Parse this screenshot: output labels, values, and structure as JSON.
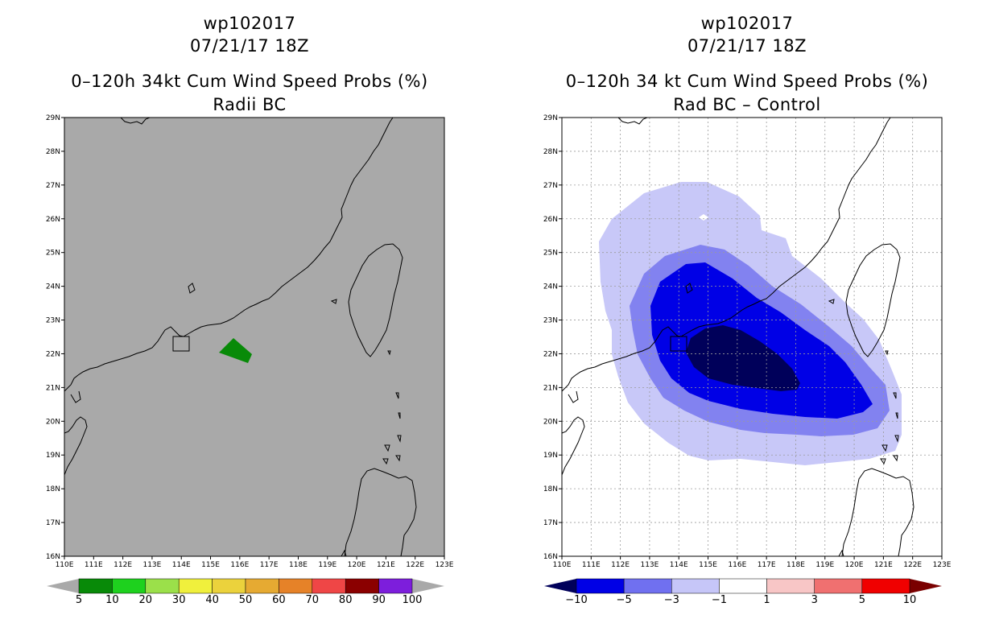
{
  "left_panel": {
    "storm_id": "wp102017",
    "datetime": "07/21/17 18Z",
    "title": "0–120h 34kt Cum Wind Speed Probs (%)",
    "subtitle": "Radii BC",
    "colors": {
      "background": "#a9a9a9",
      "prob_5_10": "#088a08"
    },
    "colorbar": {
      "labels": [
        "5",
        "10",
        "20",
        "30",
        "40",
        "50",
        "60",
        "70",
        "80",
        "90",
        "100"
      ],
      "colors": [
        "#088a08",
        "#1ed11e",
        "#9be04a",
        "#f0f03c",
        "#ebd23c",
        "#e6aa32",
        "#e68228",
        "#ef4646",
        "#8b0000",
        "#7d1edc"
      ],
      "arrow_color": "#a9a9a9"
    }
  },
  "right_panel": {
    "storm_id": "wp102017",
    "datetime": "07/21/17 18Z",
    "title": "0–120h 34 kt Cum Wind Speed Probs (%)",
    "subtitle": "Rad BC – Control",
    "colors": {
      "lt_minus1": "#c8c8f8",
      "lt_minus3": "#8282f0",
      "lt_minus5": "#0000e6",
      "lt_minus10": "#00005a"
    },
    "colorbar": {
      "labels": [
        "−10",
        "−5",
        "−3",
        "−1",
        "1",
        "3",
        "5",
        "10"
      ],
      "colors": [
        "#0000e6",
        "#7070f0",
        "#c6c6f8",
        "#ffffff",
        "#f8c6c6",
        "#f07070",
        "#f00000"
      ],
      "left_arrow_color": "#00005a",
      "right_arrow_color": "#7a0000"
    }
  },
  "axes": {
    "lat_labels": [
      "29N",
      "28N",
      "27N",
      "26N",
      "25N",
      "24N",
      "23N",
      "22N",
      "21N",
      "20N",
      "19N",
      "18N",
      "17N",
      "16N"
    ],
    "lon_labels": [
      "110E",
      "111E",
      "112E",
      "113E",
      "114E",
      "115E",
      "116E",
      "117E",
      "118E",
      "119E",
      "120E",
      "121E",
      "122E",
      "123E"
    ]
  }
}
